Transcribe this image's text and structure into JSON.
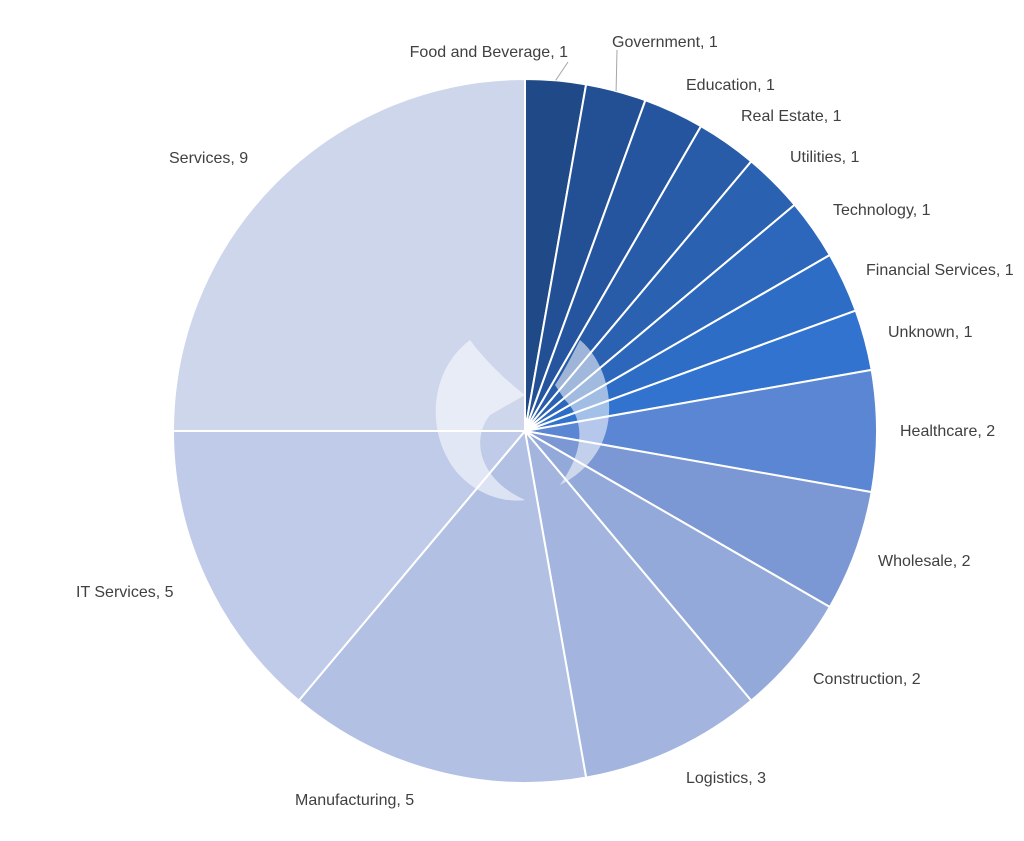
{
  "chart_data": {
    "type": "pie",
    "title": "",
    "start_angle_deg": 0,
    "direction": "clockwise",
    "data_labels": "category, value",
    "legend": "none",
    "slices": [
      {
        "label": "Food and Beverage",
        "value": 1,
        "display": "Food and Beverage, 1",
        "color": "#1f4a87"
      },
      {
        "label": "Government",
        "value": 1,
        "display": "Government, 1",
        "color": "#234f94"
      },
      {
        "label": "Education",
        "value": 1,
        "display": "Education, 1",
        "color": "#25559e"
      },
      {
        "label": "Real Estate",
        "value": 1,
        "display": "Real Estate, 1",
        "color": "#285ba8"
      },
      {
        "label": "Utilities",
        "value": 1,
        "display": "Utilities, 1",
        "color": "#2a61b1"
      },
      {
        "label": "Technology",
        "value": 1,
        "display": "Technology, 1",
        "color": "#2c67bb"
      },
      {
        "label": "Financial Services",
        "value": 1,
        "display": "Financial Services, 1",
        "color": "#2e6dc5"
      },
      {
        "label": "Unknown",
        "value": 1,
        "display": "Unknown, 1",
        "color": "#3173ce"
      },
      {
        "label": "Healthcare",
        "value": 2,
        "display": "Healthcare, 2",
        "color": "#5b86d3"
      },
      {
        "label": "Wholesale",
        "value": 2,
        "display": "Wholesale, 2",
        "color": "#7b98d4"
      },
      {
        "label": "Construction",
        "value": 2,
        "display": "Construction, 2",
        "color": "#92a9d9"
      },
      {
        "label": "Logistics",
        "value": 3,
        "display": "Logistics, 3",
        "color": "#a3b5df"
      },
      {
        "label": "Manufacturing",
        "value": 5,
        "display": "Manufacturing, 5",
        "color": "#b2c0e4"
      },
      {
        "label": "IT Services",
        "value": 5,
        "display": "IT Services, 5",
        "color": "#bfcbe8"
      },
      {
        "label": "Services",
        "value": 9,
        "display": "Services, 9",
        "color": "#cdd6eb"
      }
    ]
  }
}
